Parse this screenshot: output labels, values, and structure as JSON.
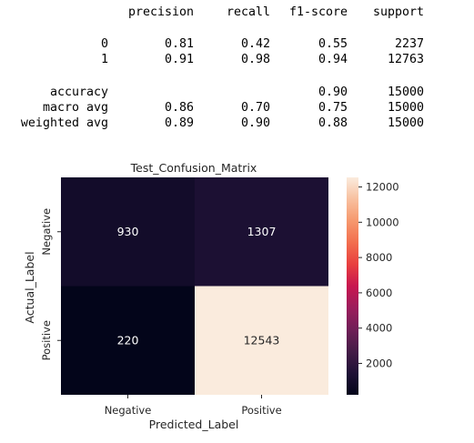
{
  "report": {
    "headers": [
      "precision",
      "recall",
      "f1-score",
      "support"
    ],
    "rows": [
      {
        "label": "0",
        "precision": "0.81",
        "recall": "0.42",
        "f1": "0.55",
        "support": "2237"
      },
      {
        "label": "1",
        "precision": "0.91",
        "recall": "0.98",
        "f1": "0.94",
        "support": "12763"
      }
    ],
    "accuracy": {
      "label": "accuracy",
      "f1": "0.90",
      "support": "15000"
    },
    "macro": {
      "label": "macro avg",
      "precision": "0.86",
      "recall": "0.70",
      "f1": "0.75",
      "support": "15000"
    },
    "weighted": {
      "label": "weighted avg",
      "precision": "0.89",
      "recall": "0.90",
      "f1": "0.88",
      "support": "15000"
    }
  },
  "chart_data": {
    "type": "heatmap",
    "title": "Test_Confusion_Matrix",
    "xlabel": "Predicted_Label",
    "ylabel": "Actual_Label",
    "x_categories": [
      "Negative",
      "Positive"
    ],
    "y_categories": [
      "Negative",
      "Positive"
    ],
    "values": [
      [
        930,
        1307
      ],
      [
        220,
        12543
      ]
    ],
    "colorbar": {
      "ticks": [
        2000,
        4000,
        6000,
        8000,
        10000,
        12000
      ],
      "vmin": 220,
      "vmax": 12543,
      "colormap": "rocket"
    }
  }
}
